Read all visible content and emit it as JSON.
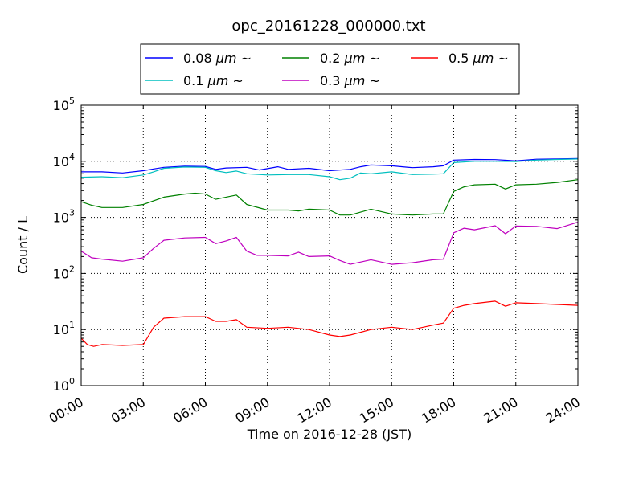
{
  "chart_data": {
    "type": "line",
    "title": "opc_20161228_000000.txt",
    "xlabel": "Time on 2016-12-28 (JST)",
    "ylabel": "Count / L",
    "x_range_hours": [
      0,
      24
    ],
    "x_ticks": [
      "00:00",
      "03:00",
      "06:00",
      "09:00",
      "12:00",
      "15:00",
      "18:00",
      "21:00",
      "24:00"
    ],
    "y_scale": "log",
    "ylim": [
      1,
      100000
    ],
    "y_ticks": [
      {
        "value": 1,
        "base": "10",
        "exp": "0"
      },
      {
        "value": 10,
        "base": "10",
        "exp": "1"
      },
      {
        "value": 100,
        "base": "10",
        "exp": "2"
      },
      {
        "value": 1000,
        "base": "10",
        "exp": "3"
      },
      {
        "value": 10000,
        "base": "10",
        "exp": "4"
      },
      {
        "value": 100000,
        "base": "10",
        "exp": "5"
      }
    ],
    "grid": true,
    "legend_placement": "top-center-outside",
    "series": [
      {
        "name": "0.08 μm ~",
        "label_size": "0.08 ",
        "label_unit": "μm",
        "label_tilde": "~",
        "color": "#0000ff",
        "x": [
          0,
          1,
          2,
          3,
          3.5,
          4,
          5,
          6,
          6.5,
          7,
          8,
          8.6,
          9,
          9.5,
          10,
          11,
          12,
          13,
          13.5,
          14,
          15,
          16,
          17,
          17.5,
          18,
          19,
          20,
          21,
          22,
          23,
          24
        ],
        "y": [
          6500,
          6500,
          6200,
          6800,
          7300,
          7800,
          8200,
          8100,
          7200,
          7600,
          7800,
          7000,
          7400,
          8000,
          7200,
          7500,
          6800,
          7200,
          8000,
          8600,
          8300,
          7700,
          8000,
          8300,
          10500,
          10800,
          10700,
          10200,
          10900,
          11000,
          11200
        ]
      },
      {
        "name": "0.1 μm ~",
        "label_size": "0.1 ",
        "label_unit": "μm",
        "label_tilde": "~",
        "color": "#00bfbf",
        "x": [
          0,
          1,
          2,
          3,
          3.5,
          4,
          5,
          6,
          6.5,
          7,
          7.5,
          8,
          9,
          10,
          11,
          12,
          12.5,
          13,
          13.5,
          14,
          15,
          16,
          17,
          17.5,
          18,
          19,
          20,
          21,
          22,
          23,
          24
        ],
        "y": [
          5200,
          5300,
          5100,
          5700,
          6500,
          7500,
          7900,
          7800,
          6800,
          6300,
          6700,
          6000,
          5700,
          5800,
          5800,
          5300,
          4700,
          5000,
          6200,
          6000,
          6500,
          5800,
          5900,
          6000,
          9500,
          10000,
          10000,
          9900,
          10500,
          10800,
          11000
        ]
      },
      {
        "name": "0.2 μm ~",
        "label_size": "0.2 ",
        "label_unit": "μm",
        "label_tilde": "~",
        "color": "#008000",
        "x": [
          0,
          0.5,
          1,
          2,
          3,
          4,
          5,
          5.5,
          6,
          6.5,
          7,
          7.5,
          8,
          9,
          10,
          10.5,
          11,
          12,
          12.5,
          13,
          14,
          15,
          16,
          17,
          17.5,
          18,
          18.5,
          19,
          20,
          20.5,
          21,
          22,
          23,
          24
        ],
        "y": [
          1900,
          1650,
          1500,
          1500,
          1700,
          2300,
          2600,
          2700,
          2600,
          2100,
          2300,
          2500,
          1700,
          1350,
          1350,
          1300,
          1400,
          1350,
          1100,
          1100,
          1400,
          1150,
          1100,
          1150,
          1150,
          2900,
          3500,
          3800,
          3900,
          3200,
          3800,
          3900,
          4200,
          4700
        ]
      },
      {
        "name": "0.3 μm ~",
        "label_size": "0.3 ",
        "label_unit": "μm",
        "label_tilde": "~",
        "color": "#bf00bf",
        "x": [
          0,
          0.5,
          1,
          2,
          3,
          3.5,
          4,
          5,
          6,
          6.5,
          7,
          7.5,
          8,
          8.5,
          9,
          10,
          10.5,
          11,
          12,
          12.5,
          13,
          14,
          15,
          16,
          17,
          17.5,
          18,
          18.5,
          19,
          20,
          20.5,
          21,
          22,
          23,
          24
        ],
        "y": [
          250,
          190,
          180,
          165,
          190,
          280,
          390,
          430,
          440,
          340,
          380,
          440,
          250,
          210,
          210,
          205,
          240,
          200,
          205,
          170,
          145,
          175,
          145,
          155,
          175,
          180,
          530,
          640,
          600,
          710,
          510,
          700,
          690,
          630,
          820
        ]
      },
      {
        "name": "0.5 μm ~",
        "label_size": "0.5 ",
        "label_unit": "μm",
        "label_tilde": "~",
        "color": "#ff0000",
        "x": [
          0,
          0.3,
          0.6,
          1,
          2,
          3,
          3.5,
          4,
          5,
          6,
          6.5,
          7,
          7.5,
          8,
          9,
          10,
          11,
          12,
          12.5,
          13,
          14,
          15,
          16,
          17,
          17.5,
          18,
          18.5,
          19,
          20,
          20.5,
          21,
          22,
          23,
          24
        ],
        "y": [
          7,
          5.4,
          5,
          5.4,
          5.2,
          5.4,
          11,
          16,
          17,
          17,
          14,
          14,
          15,
          11,
          10.5,
          11,
          10,
          8,
          7.5,
          8,
          10,
          11,
          10,
          12,
          13,
          24,
          27,
          29,
          32,
          26,
          30,
          29,
          28,
          27
        ]
      }
    ]
  }
}
